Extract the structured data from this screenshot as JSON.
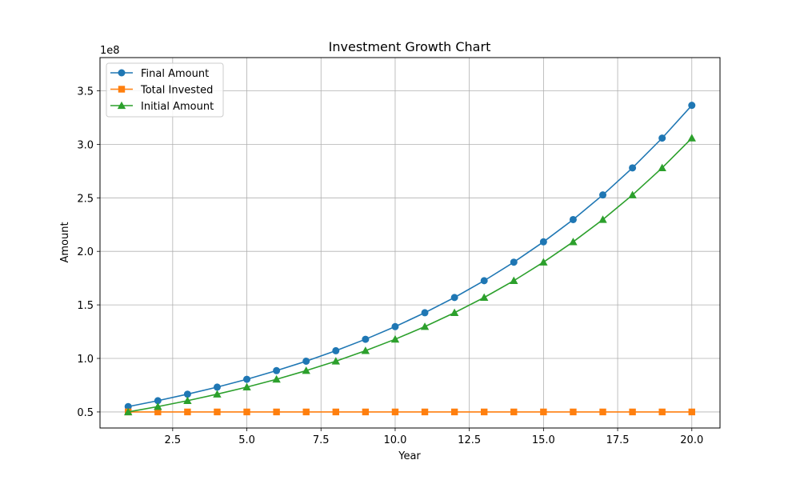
{
  "chart_data": {
    "type": "line",
    "title": "Investment Growth Chart",
    "xlabel": "Year",
    "ylabel": "Amount",
    "y_scale_note": "1e8",
    "x": [
      1,
      2,
      3,
      4,
      5,
      6,
      7,
      8,
      9,
      10,
      11,
      12,
      13,
      14,
      15,
      16,
      17,
      18,
      19,
      20
    ],
    "xlim": [
      0.05,
      20.95
    ],
    "ylim": [
      0.35,
      3.81
    ],
    "x_ticks": [
      2.5,
      5.0,
      7.5,
      10.0,
      12.5,
      15.0,
      17.5,
      20.0
    ],
    "x_tick_labels": [
      "2.5",
      "5.0",
      "7.5",
      "10.0",
      "12.5",
      "15.0",
      "17.5",
      "20.0"
    ],
    "y_ticks": [
      0.5,
      1.0,
      1.5,
      2.0,
      2.5,
      3.0,
      3.5
    ],
    "y_tick_labels": [
      "0.5",
      "1.0",
      "1.5",
      "2.0",
      "2.5",
      "3.0",
      "3.5"
    ],
    "grid": true,
    "legend_position": "top-left",
    "series": [
      {
        "name": "Final Amount",
        "color": "#1f77b4",
        "marker": "circle",
        "values": [
          0.55,
          0.605,
          0.666,
          0.732,
          0.805,
          0.886,
          0.974,
          1.072,
          1.179,
          1.297,
          1.427,
          1.569,
          1.726,
          1.899,
          2.089,
          2.297,
          2.527,
          2.78,
          3.058,
          3.364
        ]
      },
      {
        "name": "Total Invested",
        "color": "#ff7f0e",
        "marker": "square",
        "values": [
          0.5,
          0.5,
          0.5,
          0.5,
          0.5,
          0.5,
          0.5,
          0.5,
          0.5,
          0.5,
          0.5,
          0.5,
          0.5,
          0.5,
          0.5,
          0.5,
          0.5,
          0.5,
          0.5,
          0.5
        ]
      },
      {
        "name": "Initial Amount",
        "color": "#2ca02c",
        "marker": "triangle",
        "values": [
          0.5,
          0.55,
          0.605,
          0.666,
          0.732,
          0.805,
          0.886,
          0.974,
          1.072,
          1.179,
          1.297,
          1.427,
          1.569,
          1.726,
          1.899,
          2.089,
          2.297,
          2.527,
          2.78,
          3.058
        ]
      }
    ]
  }
}
